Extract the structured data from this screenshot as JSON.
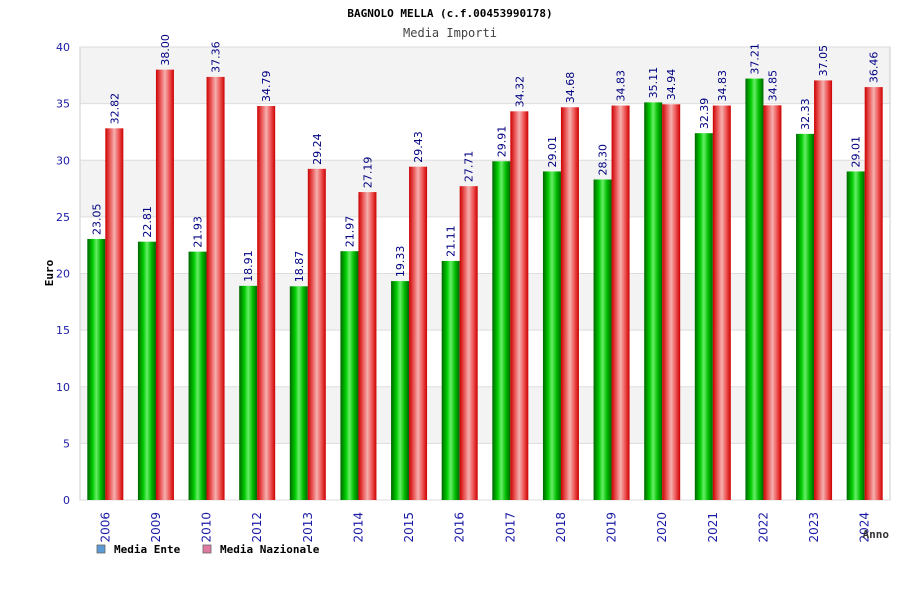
{
  "chart_data": {
    "type": "bar",
    "title": "BAGNOLO MELLA (c.f.00453990178)",
    "subtitle": "Media Importi",
    "xlabel": "Anno",
    "ylabel": "Euro",
    "ylim": [
      0,
      40
    ],
    "ytick_step": 5,
    "grid": true,
    "legend_position": "bottom-left",
    "categories": [
      "2006",
      "2009",
      "2010",
      "2012",
      "2013",
      "2014",
      "2015",
      "2016",
      "2017",
      "2018",
      "2019",
      "2020",
      "2021",
      "2022",
      "2023",
      "2024"
    ],
    "series": [
      {
        "name": "Media Ente",
        "color": "#00aa00",
        "legend_color": "#5b9bd5",
        "values": [
          23.05,
          22.81,
          21.93,
          18.91,
          18.87,
          21.97,
          19.33,
          21.11,
          29.91,
          29.01,
          28.3,
          35.11,
          32.39,
          37.21,
          32.33,
          29.01
        ],
        "labels": [
          "23.05",
          "22.81",
          "21.93",
          "18.91",
          "18.87",
          "21.97",
          "19.33",
          "21.11",
          "29.91",
          "29.01",
          "28.30",
          "35.11",
          "32.39",
          "37.21",
          "32.33",
          "29.01"
        ]
      },
      {
        "name": "Media Nazionale",
        "color": "#ee0000",
        "legend_color": "#e07aa0",
        "values": [
          32.82,
          38.0,
          37.36,
          34.79,
          29.24,
          27.19,
          29.43,
          27.71,
          34.32,
          34.68,
          34.83,
          34.94,
          34.83,
          34.85,
          37.05,
          36.46
        ],
        "labels": [
          "32.82",
          "38.00",
          "37.36",
          "34.79",
          "29.24",
          "27.19",
          "29.43",
          "27.71",
          "34.32",
          "34.68",
          "34.83",
          "34.94",
          "34.83",
          "34.85",
          "37.05",
          "36.46"
        ]
      }
    ]
  }
}
